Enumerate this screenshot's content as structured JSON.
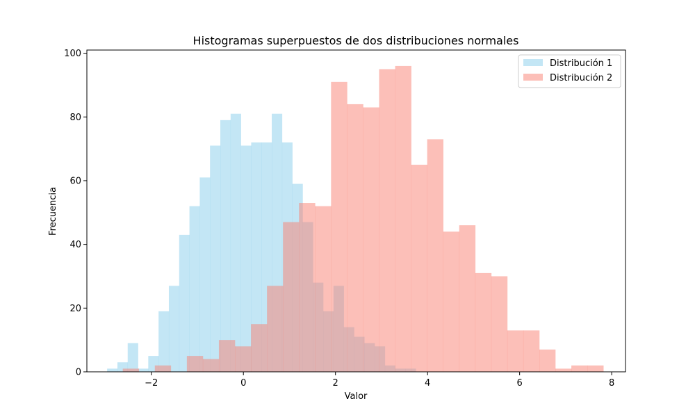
{
  "chart_data": {
    "type": "histogram",
    "title": "Histogramas superpuestos de dos distribuciones normales",
    "xlabel": "Valor",
    "ylabel": "Frecuencia",
    "xlim": [
      -3.4,
      8.3
    ],
    "ylim": [
      0,
      101
    ],
    "xticks": [
      -2,
      0,
      2,
      4,
      6,
      8
    ],
    "xtick_labels": [
      "−2",
      "0",
      "2",
      "4",
      "6",
      "8"
    ],
    "yticks": [
      0,
      20,
      40,
      60,
      80,
      100
    ],
    "ytick_labels": [
      "0",
      "20",
      "40",
      "60",
      "80",
      "100"
    ],
    "legend_position": "top-right",
    "alpha": 0.5,
    "series": [
      {
        "name": "Distribución 1",
        "color": "#87ceeb",
        "bin_start": -2.96,
        "bin_width": 0.2235,
        "values": [
          1,
          3,
          9,
          1,
          5,
          19,
          27,
          43,
          52,
          61,
          71,
          79,
          81,
          71,
          72,
          72,
          81,
          72,
          59,
          47,
          28,
          19,
          27,
          14,
          11,
          9,
          8,
          2,
          1,
          1
        ]
      },
      {
        "name": "Distribución 2",
        "color": "#fa8072",
        "bin_start": -2.62,
        "bin_width": 0.348,
        "values": [
          1,
          0,
          2,
          0,
          5,
          4,
          10,
          8,
          15,
          27,
          47,
          53,
          52,
          91,
          84,
          83,
          95,
          96,
          65,
          73,
          44,
          46,
          31,
          30,
          13,
          13,
          7,
          1,
          2,
          2
        ]
      }
    ]
  }
}
